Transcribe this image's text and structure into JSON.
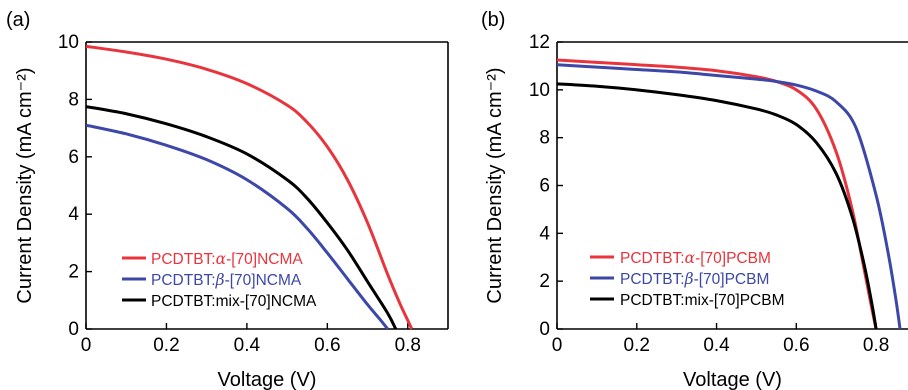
{
  "figure": {
    "colors": {
      "red": "#e8343c",
      "blue": "#3c47a8",
      "black": "#000000"
    }
  },
  "chart_data": [
    {
      "type": "line",
      "panel_label": "(a)",
      "xlabel": "Voltage (V)",
      "ylabel": "Current Density (mA cm⁻²)",
      "xlim": [
        0,
        0.9
      ],
      "ylim": [
        0,
        10
      ],
      "xticks": [
        0,
        0.2,
        0.4,
        0.6,
        0.8
      ],
      "xtick_labels": [
        "0",
        "0.2",
        "0.4",
        "0.6",
        "0.8"
      ],
      "yticks": [
        0,
        2,
        4,
        6,
        8,
        10
      ],
      "ytick_labels": [
        "0",
        "2",
        "4",
        "6",
        "8",
        "10"
      ],
      "grid": false,
      "legend_position": "bottom-left",
      "series": [
        {
          "name": "PCDTBT:α-[70]NCMA",
          "name_prefix": "PCDTBT:",
          "name_italic": "α",
          "name_suffix": "-[70]NCMA",
          "color": "#e8343c",
          "x": [
            0,
            0.1,
            0.2,
            0.3,
            0.4,
            0.5,
            0.55,
            0.6,
            0.65,
            0.7,
            0.75,
            0.78,
            0.8,
            0.81
          ],
          "y": [
            9.85,
            9.65,
            9.4,
            9.05,
            8.55,
            7.8,
            7.2,
            6.35,
            5.2,
            3.7,
            1.9,
            0.9,
            0.3,
            0
          ]
        },
        {
          "name": "PCDTBT:β-[70]NCMA",
          "name_prefix": "PCDTBT:",
          "name_italic": "β",
          "name_suffix": "-[70]NCMA",
          "color": "#3c47a8",
          "x": [
            0,
            0.1,
            0.2,
            0.3,
            0.4,
            0.5,
            0.55,
            0.6,
            0.65,
            0.7,
            0.73,
            0.75
          ],
          "y": [
            7.1,
            6.8,
            6.4,
            5.9,
            5.2,
            4.2,
            3.5,
            2.65,
            1.75,
            0.85,
            0.35,
            0
          ]
        },
        {
          "name": "PCDTBT:mix-[70]NCMA",
          "name_prefix": "PCDTBT:mix-[70]NCMA",
          "name_italic": "",
          "name_suffix": "",
          "color": "#000000",
          "x": [
            0,
            0.1,
            0.2,
            0.3,
            0.4,
            0.5,
            0.55,
            0.6,
            0.65,
            0.7,
            0.75,
            0.77
          ],
          "y": [
            7.75,
            7.5,
            7.15,
            6.7,
            6.1,
            5.2,
            4.55,
            3.7,
            2.75,
            1.65,
            0.55,
            0
          ]
        }
      ]
    },
    {
      "type": "line",
      "panel_label": "(b)",
      "xlabel": "Voltage (V)",
      "ylabel": "Current Density (mA cm⁻²)",
      "xlim": [
        0,
        0.88
      ],
      "ylim": [
        0,
        12
      ],
      "xticks": [
        0,
        0.2,
        0.4,
        0.6,
        0.8
      ],
      "xtick_labels": [
        "0",
        "0.2",
        "0.4",
        "0.6",
        "0.8"
      ],
      "yticks": [
        0,
        2,
        4,
        6,
        8,
        10,
        12
      ],
      "ytick_labels": [
        "0",
        "2",
        "4",
        "6",
        "8",
        "10",
        "12"
      ],
      "grid": false,
      "legend_position": "bottom-left",
      "series": [
        {
          "name": "PCDTBT:α-[70]PCBM",
          "name_prefix": "PCDTBT:",
          "name_italic": "α",
          "name_suffix": "-[70]PCBM",
          "color": "#e8343c",
          "x": [
            0,
            0.1,
            0.2,
            0.3,
            0.4,
            0.5,
            0.55,
            0.6,
            0.65,
            0.7,
            0.74,
            0.77,
            0.79,
            0.8
          ],
          "y": [
            11.25,
            11.15,
            11.05,
            10.95,
            10.8,
            10.55,
            10.35,
            10.0,
            9.2,
            7.4,
            5.0,
            2.5,
            0.8,
            0
          ]
        },
        {
          "name": "PCDTBT:β-[70]PCBM",
          "name_prefix": "PCDTBT:",
          "name_italic": "β",
          "name_suffix": "-[70]PCBM",
          "color": "#3c47a8",
          "x": [
            0,
            0.1,
            0.2,
            0.3,
            0.4,
            0.5,
            0.55,
            0.6,
            0.65,
            0.7,
            0.75,
            0.8,
            0.83,
            0.85,
            0.86
          ],
          "y": [
            11.05,
            10.95,
            10.85,
            10.75,
            10.6,
            10.45,
            10.35,
            10.2,
            9.95,
            9.5,
            8.4,
            5.6,
            3.2,
            1.2,
            0
          ]
        },
        {
          "name": "PCDTBT:mix-[70]PCBM",
          "name_prefix": "PCDTBT:mix-[70]PCBM",
          "name_italic": "",
          "name_suffix": "",
          "color": "#000000",
          "x": [
            0,
            0.1,
            0.2,
            0.3,
            0.4,
            0.5,
            0.55,
            0.6,
            0.65,
            0.7,
            0.74,
            0.77,
            0.79,
            0.8
          ],
          "y": [
            10.25,
            10.15,
            10.0,
            9.8,
            9.55,
            9.2,
            8.95,
            8.55,
            7.8,
            6.5,
            4.7,
            2.7,
            1.0,
            0
          ]
        }
      ]
    }
  ]
}
